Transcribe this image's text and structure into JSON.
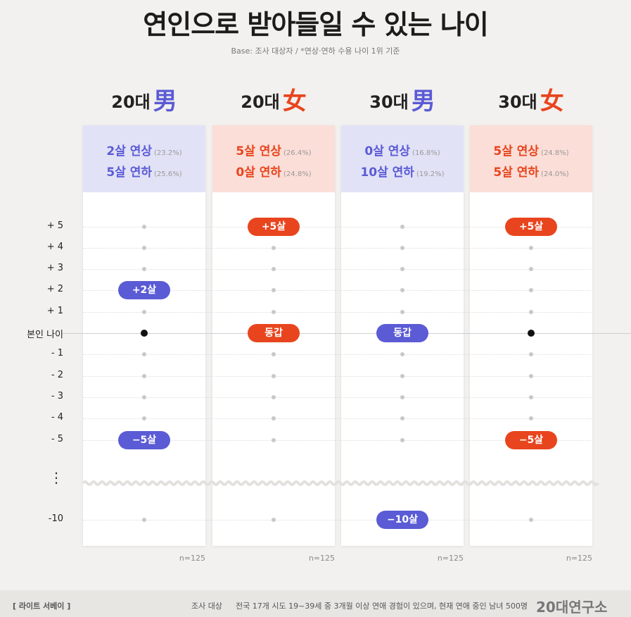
{
  "title": "연인으로 받아들일 수 있는 나이",
  "subtitle": "Base: 조사 대상자   /  *연상·연하 수용 나이 1위 기준",
  "colors": {
    "male": "#5b5bd6",
    "female": "#e8451e",
    "male_bg": "#e2e2f7",
    "female_bg": "#fbded7"
  },
  "chart_data": {
    "type": "scatter",
    "y_axis_labels": [
      "+ 5",
      "+ 4",
      "+ 3",
      "+ 2",
      "+ 1",
      "본인 나이",
      "- 1",
      "- 2",
      "- 3",
      "- 4",
      "- 5",
      "-10"
    ],
    "y_values": [
      5,
      4,
      3,
      2,
      1,
      0,
      -1,
      -2,
      -3,
      -4,
      -5,
      -10
    ],
    "axis_break": "⋮",
    "series": [
      {
        "header": "20대",
        "symbol": "男",
        "gender": "male",
        "line1": "2살 연상",
        "pct1": "(23.2%)",
        "line2": "5살 연하",
        "pct2": "(25.6%)",
        "values": [
          2,
          -5
        ],
        "labels": [
          "+2살",
          "−5살"
        ],
        "self_dot": true,
        "n": "n=125"
      },
      {
        "header": "20대",
        "symbol": "女",
        "gender": "female",
        "line1": "5살 연상",
        "pct1": "(26.4%)",
        "line2": "0살 연하",
        "pct2": "(24.8%)",
        "values": [
          5,
          0
        ],
        "labels": [
          "+5살",
          "동갑"
        ],
        "self_dot": false,
        "n": "n=125"
      },
      {
        "header": "30대",
        "symbol": "男",
        "gender": "male",
        "line1": "0살 연상",
        "pct1": "(16.8%)",
        "line2": "10살 연하",
        "pct2": "(19.2%)",
        "values": [
          0,
          -10
        ],
        "labels": [
          "동갑",
          "−10살"
        ],
        "self_dot": false,
        "n": "n=125"
      },
      {
        "header": "30대",
        "symbol": "女",
        "gender": "female",
        "line1": "5살 연상",
        "pct1": "(24.8%)",
        "line2": "5살 연하",
        "pct2": "(24.0%)",
        "values": [
          5,
          -5
        ],
        "labels": [
          "+5살",
          "−5살"
        ],
        "self_dot": true,
        "n": "n=125"
      }
    ]
  },
  "footer": {
    "survey_name": "[ 라이트 서베이 ]",
    "target_label": "조사 대상",
    "target_text": "전국 17개 시도 19~39세 중 3개월 이상 연애 경험이 있으며, 현재 연애 중인 남녀 500명",
    "logo": "20대연구소"
  }
}
